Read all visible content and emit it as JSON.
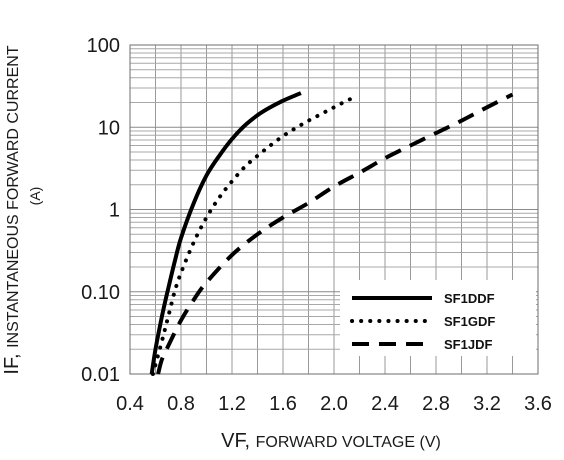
{
  "chart_data": {
    "type": "line",
    "title": "",
    "xlabel": {
      "prefix": "VF, ",
      "main": "FORWARD VOLTAGE (V)"
    },
    "ylabel": {
      "prefix": "IF, ",
      "main": "INSTANTANEOUS FORWARD CURRENT",
      "unit": "(A)"
    },
    "xlim": [
      0.4,
      3.6
    ],
    "ylim": [
      0.01,
      100
    ],
    "y_scale": "log",
    "grid": true,
    "legend_position": "bottom-right",
    "x_ticks": [
      0.4,
      0.8,
      1.2,
      1.6,
      2.0,
      2.4,
      2.8,
      3.2,
      3.6
    ],
    "x_tick_labels": [
      "0.4",
      "0.8",
      "1.2",
      "1.6",
      "2.0",
      "2.4",
      "2.8",
      "3.2",
      "3.6"
    ],
    "y_ticks": [
      0.01,
      0.1,
      1,
      10,
      100
    ],
    "y_tick_labels": [
      "0.01",
      "0.10",
      "1",
      "10",
      "100"
    ],
    "series": [
      {
        "name": "SF1DDF",
        "style": "solid",
        "color": "#000000",
        "x": [
          0.57,
          0.6,
          0.65,
          0.7,
          0.75,
          0.8,
          0.9,
          1.0,
          1.1,
          1.2,
          1.3,
          1.4,
          1.5,
          1.6,
          1.7,
          1.74
        ],
        "y": [
          0.01,
          0.02,
          0.05,
          0.11,
          0.23,
          0.45,
          1.2,
          2.6,
          4.5,
          7.2,
          10.5,
          14,
          17.5,
          21,
          24.5,
          26
        ]
      },
      {
        "name": "SF1GDF",
        "style": "dotted",
        "color": "#000000",
        "x": [
          0.58,
          0.65,
          0.7,
          0.75,
          0.8,
          0.9,
          1.0,
          1.1,
          1.2,
          1.3,
          1.4,
          1.5,
          1.6,
          1.7,
          1.8,
          1.9,
          2.0,
          2.1,
          2.16
        ],
        "y": [
          0.01,
          0.025,
          0.05,
          0.1,
          0.17,
          0.4,
          0.8,
          1.4,
          2.2,
          3.3,
          4.5,
          6.0,
          7.8,
          9.8,
          12,
          14.5,
          17.5,
          21,
          23
        ]
      },
      {
        "name": "SF1JDF",
        "style": "dashed",
        "color": "#000000",
        "x": [
          0.62,
          0.65,
          0.7,
          0.8,
          0.9,
          1.0,
          1.2,
          1.4,
          1.6,
          1.8,
          2.0,
          2.2,
          2.4,
          2.6,
          2.8,
          3.0,
          3.2,
          3.4
        ],
        "y": [
          0.01,
          0.015,
          0.022,
          0.045,
          0.08,
          0.13,
          0.28,
          0.5,
          0.8,
          1.2,
          1.9,
          2.8,
          4.2,
          6.0,
          8.5,
          12,
          17.5,
          25
        ]
      }
    ]
  }
}
